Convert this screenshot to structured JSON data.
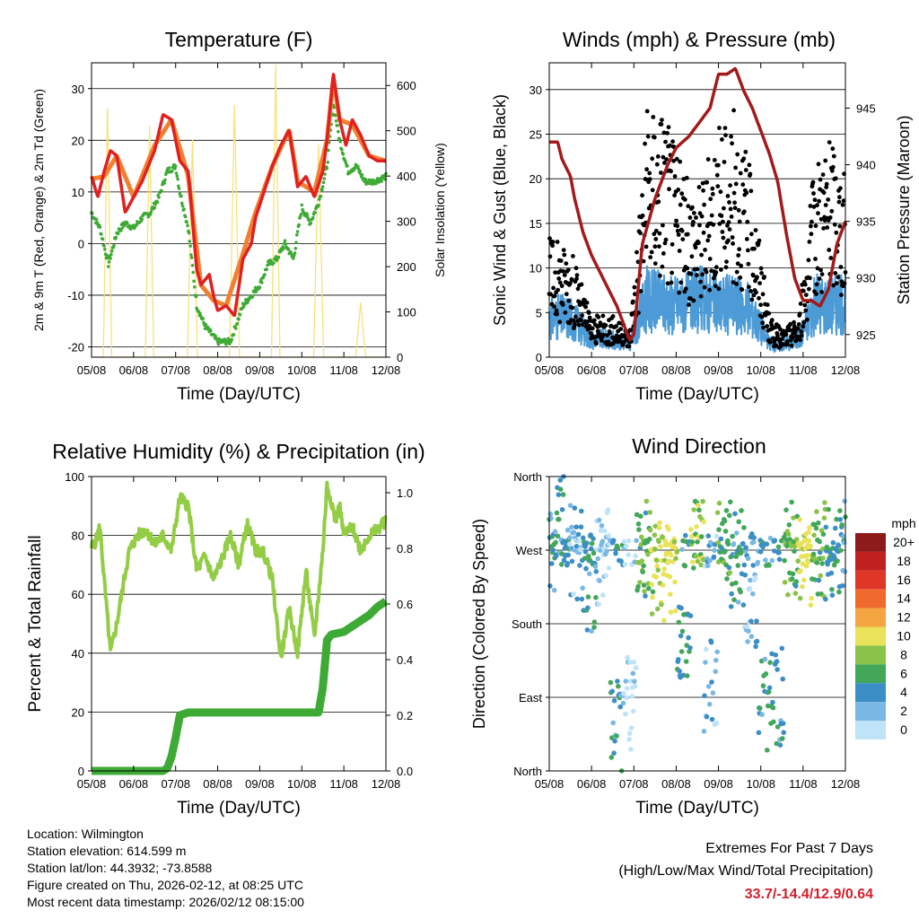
{
  "x_tick_labels": [
    "05/08",
    "06/08",
    "07/08",
    "08/08",
    "09/08",
    "10/08",
    "11/08",
    "12/08"
  ],
  "x_axis_label": "Time (Day/UTC)",
  "chart_data": [
    {
      "id": "temperature",
      "type": "line",
      "title": "Temperature (F)",
      "ylabel": "2m & 9m T (Red, Orange) & 2m Td (Green)",
      "ylim": [
        -22,
        35
      ],
      "yticks": [
        -20,
        -10,
        0,
        10,
        20,
        30
      ],
      "y2label": "Solar Insolation (Yellow)",
      "y2lim": [
        0,
        650
      ],
      "y2ticks": [
        0,
        100,
        200,
        300,
        400,
        500,
        600
      ],
      "colors": {
        "t2m": "#e02020",
        "t9m": "#f08030",
        "td": "#3daa35",
        "solar": "#f7e27a"
      },
      "series": [
        {
          "name": "2m T",
          "x": [
            0,
            0.15,
            0.3,
            0.45,
            0.6,
            0.8,
            1,
            1.2,
            1.5,
            1.7,
            1.9,
            2.1,
            2.3,
            2.5,
            2.6,
            2.8,
            2.9,
            3.0,
            3.2,
            3.4,
            3.6,
            3.8,
            3.9,
            4.1,
            4.3,
            4.5,
            4.7,
            4.9,
            5.1,
            5.3,
            5.5,
            5.6,
            5.75,
            5.9,
            6.05,
            6.2,
            6.4,
            6.6,
            6.8,
            7.0
          ],
          "values": [
            13,
            9,
            14,
            18,
            17,
            6,
            9,
            12,
            18,
            25,
            24,
            16,
            14,
            -5,
            -8,
            -6,
            -10,
            -13,
            -12,
            -14,
            -3,
            0,
            5,
            10,
            15,
            19,
            22,
            11,
            13,
            9,
            14,
            20,
            33,
            24,
            19,
            24,
            21,
            17,
            16,
            16
          ]
        },
        {
          "name": "9m T",
          "x": [
            0,
            0.3,
            0.6,
            1,
            1.5,
            1.9,
            2.3,
            2.6,
            2.9,
            3.2,
            3.6,
            3.9,
            4.3,
            4.7,
            4.9,
            5.3,
            5.6,
            5.75,
            5.9,
            6.2,
            6.6,
            7.0
          ],
          "values": [
            12.5,
            13,
            17,
            9,
            19,
            24,
            13,
            -8,
            -11,
            -12,
            -2,
            6,
            15,
            22,
            12,
            10,
            20,
            32,
            24,
            23,
            17,
            16
          ]
        },
        {
          "name": "2m Td",
          "x": [
            0,
            0.2,
            0.4,
            0.6,
            0.8,
            1,
            1.2,
            1.4,
            1.6,
            1.8,
            2.0,
            2.1,
            2.3,
            2.5,
            2.7,
            3.0,
            3.3,
            3.6,
            3.8,
            4.0,
            4.2,
            4.4,
            4.6,
            4.8,
            5.0,
            5.2,
            5.4,
            5.6,
            5.75,
            5.9,
            6.1,
            6.3,
            6.5,
            6.7,
            7.0
          ],
          "values": [
            6,
            3,
            -4,
            2,
            4,
            3,
            5,
            6,
            9,
            14,
            15,
            10,
            3,
            -12,
            -16,
            -19,
            -19,
            -12,
            -10,
            -8,
            -4,
            -3,
            0,
            -3,
            7,
            4,
            8,
            15,
            27,
            20,
            14,
            15,
            12,
            12,
            13
          ]
        },
        {
          "name": "Solar",
          "x": [
            0,
            0.28,
            0.38,
            0.48,
            0.68,
            1.28,
            1.38,
            1.48,
            1.68,
            2.28,
            2.4,
            2.52,
            2.68,
            3.28,
            3.4,
            3.52,
            3.68,
            4.28,
            4.38,
            4.48,
            4.68,
            5.28,
            5.4,
            5.52,
            5.68,
            6.28,
            6.4,
            6.52,
            6.68,
            7.0
          ],
          "values": [
            0,
            0,
            550,
            0,
            0,
            0,
            510,
            0,
            0,
            0,
            480,
            0,
            0,
            0,
            555,
            0,
            0,
            0,
            645,
            0,
            0,
            0,
            470,
            0,
            0,
            0,
            120,
            0,
            0,
            0
          ]
        }
      ]
    },
    {
      "id": "winds",
      "type": "scatter",
      "title": "Winds (mph) & Pressure (mb)",
      "ylabel": "Sonic Wind & Gust (Blue, Black)",
      "ylim": [
        0,
        33
      ],
      "yticks": [
        0,
        5,
        10,
        15,
        20,
        25,
        30
      ],
      "y2label": "Station Pressure (Maroon)",
      "y2lim": [
        923,
        949
      ],
      "y2ticks": [
        925,
        930,
        935,
        940,
        945
      ],
      "colors": {
        "wind": "#4c9bd6",
        "gust": "#000000",
        "pressure": "#a31a1a"
      },
      "series": [
        {
          "name": "Pressure",
          "x": [
            0,
            0.2,
            0.3,
            0.5,
            0.6,
            0.8,
            1.0,
            1.2,
            1.4,
            1.6,
            1.8,
            1.9,
            2.0,
            2.2,
            2.5,
            2.8,
            3.0,
            3.3,
            3.6,
            3.8,
            4.0,
            4.2,
            4.4,
            4.6,
            4.8,
            5.0,
            5.2,
            5.4,
            5.6,
            5.8,
            6.0,
            6.2,
            6.4,
            6.6,
            6.8,
            7.0
          ],
          "values": [
            942,
            942,
            940.5,
            939,
            937,
            934,
            932,
            930.5,
            929,
            927.5,
            925.5,
            924.5,
            925,
            933,
            937,
            940,
            941.5,
            942.5,
            944,
            945,
            948,
            948,
            948.5,
            946.5,
            945,
            943,
            941,
            938.5,
            934,
            930,
            928,
            928,
            927.5,
            929,
            933,
            935
          ]
        },
        {
          "name": "Gust regime",
          "x": [
            0,
            0.5,
            1.0,
            1.5,
            1.9,
            2.3,
            2.7,
            3.2,
            3.6,
            4.0,
            4.4,
            4.8,
            5.2,
            5.5,
            5.9,
            6.3,
            6.7,
            7.0
          ],
          "values": [
            9,
            8,
            3,
            3,
            2,
            18,
            19,
            13,
            13,
            17,
            18,
            13,
            3,
            2,
            3,
            15,
            16,
            13
          ]
        },
        {
          "name": "Wind regime",
          "x": [
            0,
            0.5,
            1.0,
            1.5,
            1.9,
            2.3,
            2.7,
            3.2,
            3.6,
            4.0,
            4.4,
            4.8,
            5.2,
            5.5,
            5.9,
            6.3,
            6.7,
            7.0
          ],
          "values": [
            4.5,
            4.5,
            2,
            2,
            1.5,
            6.5,
            6,
            6,
            6.5,
            6,
            6,
            5,
            1.5,
            1.5,
            2,
            6,
            6,
            6
          ]
        }
      ]
    },
    {
      "id": "humidity",
      "type": "line",
      "title": "Relative Humidity (%) & Precipitation (in)",
      "ylabel": "Percent & Total Rainfall",
      "ylim": [
        0,
        100
      ],
      "yticks": [
        0,
        20,
        40,
        60,
        80,
        100
      ],
      "y2ticks": [
        0.0,
        0.2,
        0.4,
        0.6,
        0.8,
        1.0
      ],
      "y2tick_labels": [
        "0.0",
        "0.2",
        "0.4",
        "0.6",
        "0.8",
        "1.0"
      ],
      "colors": {
        "rh": "#93cc45",
        "precip": "#3daa35"
      },
      "series": [
        {
          "name": "Relative Humidity",
          "x": [
            0,
            0.1,
            0.2,
            0.3,
            0.45,
            0.6,
            0.75,
            0.9,
            1.1,
            1.3,
            1.5,
            1.7,
            1.9,
            2.1,
            2.3,
            2.5,
            2.7,
            2.9,
            3.1,
            3.3,
            3.5,
            3.7,
            3.9,
            4.1,
            4.3,
            4.5,
            4.7,
            4.9,
            5.1,
            5.3,
            5.5,
            5.6,
            5.7,
            5.8,
            5.9,
            6.0,
            6.2,
            6.4,
            6.6,
            6.8,
            7.0
          ],
          "values": [
            76,
            78,
            83,
            65,
            40,
            50,
            63,
            75,
            80,
            82,
            77,
            80,
            75,
            93,
            90,
            68,
            73,
            65,
            72,
            80,
            70,
            84,
            75,
            74,
            65,
            38,
            55,
            40,
            68,
            45,
            75,
            97,
            92,
            85,
            90,
            80,
            83,
            75,
            80,
            82,
            85
          ]
        },
        {
          "name": "Total Precipitation",
          "x": [
            0,
            1.7,
            1.8,
            1.9,
            2.0,
            2.1,
            2.3,
            3.5,
            4.5,
            5.4,
            5.5,
            5.6,
            5.7,
            6.0,
            6.3,
            6.6,
            6.8,
            7.0
          ],
          "values": [
            0,
            0,
            0.01,
            0.05,
            0.12,
            0.2,
            0.21,
            0.21,
            0.21,
            0.21,
            0.3,
            0.47,
            0.49,
            0.5,
            0.53,
            0.56,
            0.59,
            0.61
          ]
        }
      ]
    },
    {
      "id": "wind_direction",
      "type": "scatter",
      "title": "Wind Direction",
      "ylabel": "Direction (Colored By Speed)",
      "ylim": [
        0,
        360
      ],
      "ytick_values": [
        0,
        90,
        180,
        270,
        360
      ],
      "ytick_labels": [
        "North",
        "East",
        "South",
        "West",
        "North"
      ],
      "legend_title": "mph",
      "legend_labels": [
        "20+",
        "18",
        "16",
        "14",
        "12",
        "10",
        "8",
        "6",
        "4",
        "2",
        "0"
      ],
      "legend_colors": [
        "#8e1b1b",
        "#c0201f",
        "#e03628",
        "#ef6a2c",
        "#f5a442",
        "#e9e25a",
        "#8bc34a",
        "#43a75a",
        "#3c8ec7",
        "#79b8e4",
        "#bfe3f7"
      ],
      "series": [
        {
          "name": "Direction clusters",
          "x": [
            0,
            0.4,
            0.8,
            1.0,
            1.3,
            1.6,
            2.0,
            2.3,
            2.6,
            2.9,
            3.2,
            3.5,
            3.9,
            4.2,
            4.5,
            4.8,
            5.2,
            5.6,
            5.8,
            6.1,
            6.4,
            6.7,
            7.0
          ],
          "values": [
            280,
            310,
            270,
            230,
            260,
            60,
            80,
            270,
            250,
            240,
            150,
            270,
            100,
            270,
            260,
            200,
            80,
            90,
            270,
            250,
            270,
            265,
            270
          ],
          "speed_class": [
            4,
            4,
            2,
            4,
            0,
            4,
            0,
            6,
            8,
            10,
            4,
            8,
            2,
            6,
            4,
            2,
            4,
            4,
            6,
            10,
            6,
            4,
            4
          ]
        }
      ]
    }
  ],
  "info": {
    "location": "Location: Wilmington",
    "elevation": "Station elevation: 614.599 m",
    "latlon": "Station lat/lon: 44.3932; -73.8588",
    "created": "Figure created on Thu, 2026-02-12, at 08:25 UTC",
    "timestamp": "Most recent data timestamp: 2026/02/12 08:15:00"
  },
  "extremes": {
    "line1": "Extremes For Past 7 Days",
    "line2": "(High/Low/Max Wind/Total Precipitation)",
    "values": "33.7/-14.4/12.9/0.64",
    "color": "#d0202a"
  }
}
